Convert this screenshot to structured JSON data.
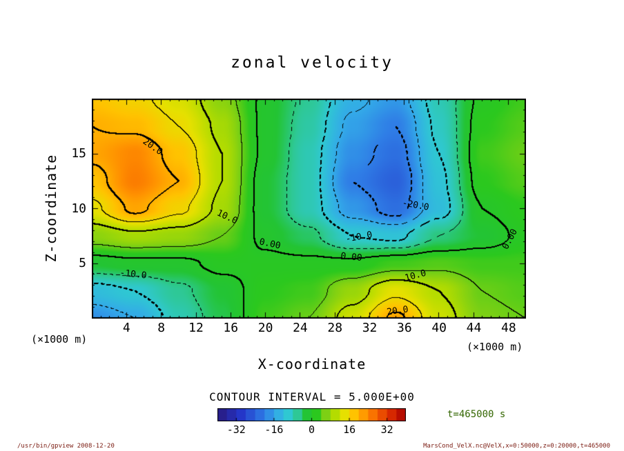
{
  "title": "zonal velocity",
  "axes": {
    "xlabel": "X-coordinate",
    "ylabel": "Z-coordinate",
    "unit_left": "(×1000 m)",
    "unit_right": "(×1000 m)"
  },
  "contour_interval_label": "CONTOUR INTERVAL = 5.000E+00",
  "time_label": "t=465000 s",
  "footer": {
    "left": "/usr/bin/gpview  2008-12-20",
    "right": "MarsCond_VelX.nc@VelX,x=0:50000,z=0:20000,t=465000"
  },
  "colors": {
    "time_label": "#336600",
    "footer_text": "#7a1a10",
    "axis_and_contour": "#000000",
    "background": "#ffffff"
  },
  "chart_data": {
    "type": "heatmap",
    "subtype": "filled-contour",
    "title": "zonal velocity",
    "xlabel": "X-coordinate (×1000 m)",
    "ylabel": "Z-coordinate (×1000 m)",
    "x_range": [
      0,
      50
    ],
    "z_range": [
      0,
      20
    ],
    "x_ticks_major": [
      4,
      8,
      12,
      16,
      20,
      24,
      28,
      32,
      36,
      40,
      44,
      48
    ],
    "x_tick_minor_step": 1,
    "z_ticks_major": [
      5,
      10,
      15
    ],
    "z_tick_minor_step": 1,
    "contour_interval": 5.0,
    "negative_contours_dashed": true,
    "grid": {
      "note": "zonal velocity field estimated from filled contours; rows are z listed top-to-bottom",
      "x": [
        0,
        5,
        10,
        15,
        20,
        25,
        30,
        35,
        40,
        45,
        50
      ],
      "z": [
        20,
        17.5,
        15,
        12.5,
        10,
        7.5,
        5,
        2.5,
        0
      ],
      "values": [
        [
          18,
          16,
          13,
          7,
          -1,
          -6,
          -14,
          -17,
          -8,
          1,
          3
        ],
        [
          20,
          19,
          15,
          9,
          -1,
          -7,
          -16,
          -20,
          -9,
          2,
          4
        ],
        [
          21,
          24,
          18,
          10,
          -1,
          -8,
          -18,
          -22,
          -10,
          3,
          5
        ],
        [
          18,
          25,
          20,
          10,
          -2,
          -8,
          -20,
          -24,
          -11,
          2,
          4
        ],
        [
          14,
          21,
          16,
          9,
          -2,
          -8,
          -17,
          -22,
          -12,
          0,
          2
        ],
        [
          7,
          9,
          8,
          5,
          -1,
          -4,
          -10,
          -11,
          -5,
          -2,
          1
        ],
        [
          -2,
          -1,
          -1,
          1,
          1,
          1,
          1,
          3,
          4,
          3,
          3
        ],
        [
          -12,
          -10,
          -6,
          -2,
          2,
          3,
          8,
          14,
          10,
          5,
          4
        ],
        [
          -18,
          -15,
          -8,
          -3,
          3,
          5,
          12,
          21,
          12,
          6,
          5
        ]
      ]
    },
    "colormap": [
      {
        "v": -40,
        "c": "#2a1a7d"
      },
      {
        "v": -30,
        "c": "#2436c8"
      },
      {
        "v": -20,
        "c": "#2f7de6"
      },
      {
        "v": -15,
        "c": "#33aae8"
      },
      {
        "v": -10,
        "c": "#2fc8d2"
      },
      {
        "v": -6,
        "c": "#2ec896"
      },
      {
        "v": -2,
        "c": "#23c434"
      },
      {
        "v": 2,
        "c": "#2bc81e"
      },
      {
        "v": 6,
        "c": "#7dd014"
      },
      {
        "v": 10,
        "c": "#b4dc00"
      },
      {
        "v": 14,
        "c": "#e6e000"
      },
      {
        "v": 18,
        "c": "#ffc300"
      },
      {
        "v": 23,
        "c": "#ff9100"
      },
      {
        "v": 28,
        "c": "#f55f00"
      },
      {
        "v": 34,
        "c": "#d62800"
      },
      {
        "v": 40,
        "c": "#a80000"
      }
    ],
    "colorbar": {
      "min": -40,
      "max": 40,
      "step": 4,
      "ticks": [
        -32,
        -16,
        0,
        16,
        32
      ]
    },
    "contour_labels": [
      {
        "text": "20.0",
        "x": 7.0,
        "z": 15.6,
        "rot": 35
      },
      {
        "text": "10.0",
        "x": 15.6,
        "z": 9.2,
        "rot": 25
      },
      {
        "text": "0.00",
        "x": 20.5,
        "z": 6.8,
        "rot": 12
      },
      {
        "text": "-10.0",
        "x": 4.8,
        "z": 4.0,
        "rot": 6
      },
      {
        "text": "0.00",
        "x": 29.9,
        "z": 5.6,
        "rot": 6
      },
      {
        "text": "-10.0",
        "x": 30.8,
        "z": 7.4,
        "rot": -10
      },
      {
        "text": "-20.0",
        "x": 37.3,
        "z": 10.3,
        "rot": 10
      },
      {
        "text": "10.0",
        "x": 37.3,
        "z": 3.9,
        "rot": -15
      },
      {
        "text": "20.0",
        "x": 35.2,
        "z": 0.7,
        "rot": -8
      },
      {
        "text": "0.00",
        "x": 48.2,
        "z": 7.2,
        "rot": -62
      }
    ]
  }
}
